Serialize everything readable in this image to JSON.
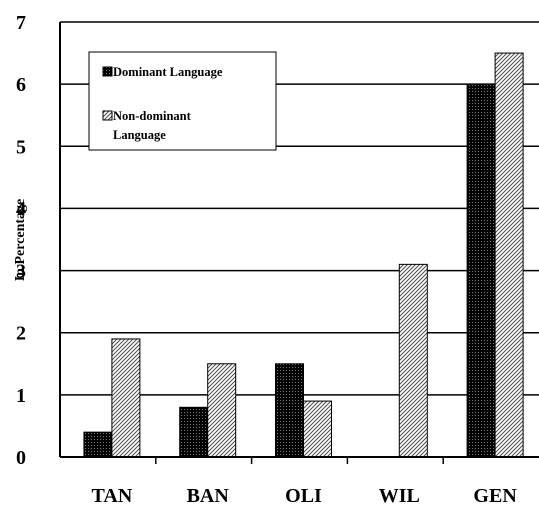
{
  "chart_data": {
    "type": "bar",
    "categories": [
      "TAN",
      "BAN",
      "OLI",
      "WIL",
      "GEN"
    ],
    "series": [
      {
        "name": "Dominant Language",
        "values": [
          0.4,
          0.8,
          1.5,
          0,
          6.0
        ],
        "pattern": "dense-dots",
        "color": "#000000"
      },
      {
        "name": "Non-dominant Language",
        "values": [
          1.9,
          1.5,
          0.9,
          3.1,
          6.5
        ],
        "pattern": "diagonal-hatch",
        "color": "#ffffff"
      }
    ],
    "ylabel": "In Percentage",
    "ylim": [
      0,
      7
    ],
    "yticks": [
      "0",
      "1",
      "2",
      "3",
      "4",
      "5",
      "6",
      "7"
    ],
    "grid": true,
    "legend": {
      "placement": "top-left",
      "entries": [
        "Dominant Language",
        "Non-dominant",
        "Language"
      ]
    }
  }
}
